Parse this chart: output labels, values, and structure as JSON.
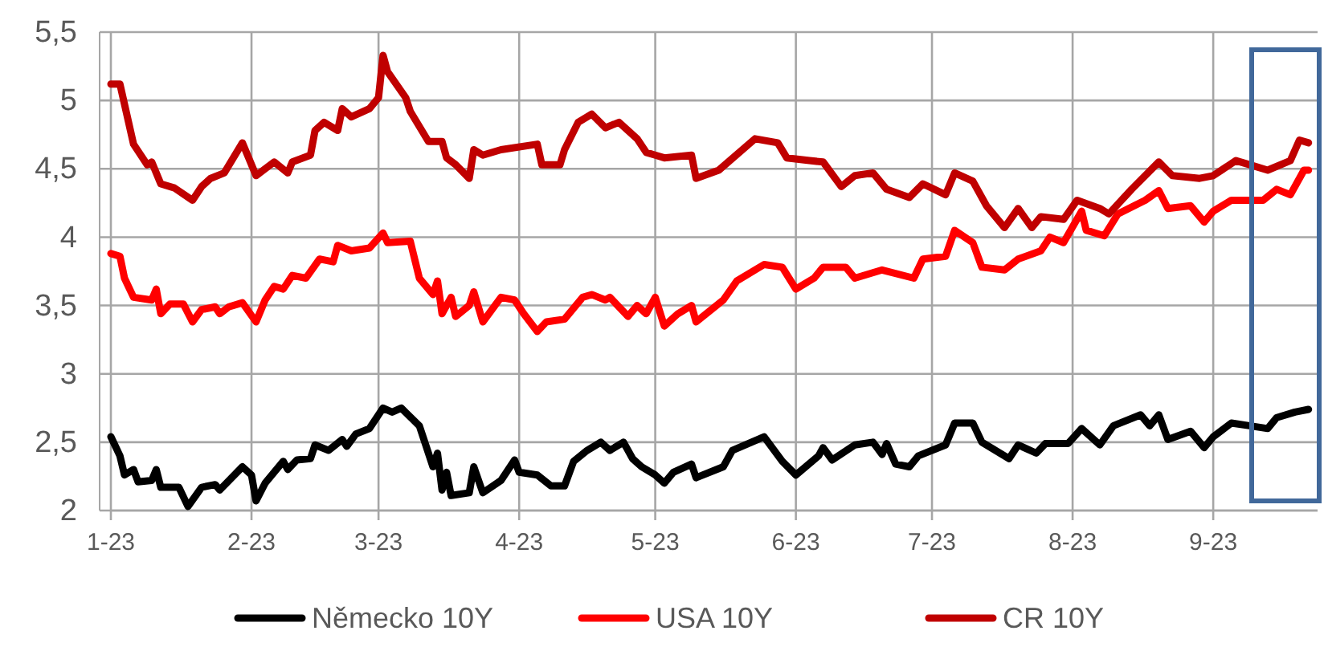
{
  "chart_data": {
    "type": "line",
    "xlim": [
      "2023-01-01",
      "2023-09-24"
    ],
    "xticks": [
      {
        "value": "2023-01-01",
        "label": "1-23"
      },
      {
        "value": "2023-02-01",
        "label": "2-23"
      },
      {
        "value": "2023-03-01",
        "label": "3-23"
      },
      {
        "value": "2023-04-01",
        "label": "4-23"
      },
      {
        "value": "2023-05-01",
        "label": "5-23"
      },
      {
        "value": "2023-06-01",
        "label": "6-23"
      },
      {
        "value": "2023-07-01",
        "label": "7-23"
      },
      {
        "value": "2023-08-01",
        "label": "8-23"
      },
      {
        "value": "2023-09-01",
        "label": "9-23"
      }
    ],
    "ylim": [
      2,
      5.5
    ],
    "yticks": [
      {
        "value": 2,
        "label": "2"
      },
      {
        "value": 2.5,
        "label": "2,5"
      },
      {
        "value": 3,
        "label": "3"
      },
      {
        "value": 3.5,
        "label": "3,5"
      },
      {
        "value": 4,
        "label": "4"
      },
      {
        "value": 4.5,
        "label": "4,5"
      },
      {
        "value": 5,
        "label": "5"
      },
      {
        "value": 5.5,
        "label": "5,5"
      }
    ],
    "grid": true,
    "legend": "bottom",
    "marker": "none",
    "line_style": "solid",
    "series": [
      {
        "name": "Německo 10Y",
        "color": "#000000",
        "x": [
          "2023-01-01",
          "2023-01-03",
          "2023-01-04",
          "2023-01-06",
          "2023-01-07",
          "2023-01-10",
          "2023-01-11",
          "2023-01-12",
          "2023-01-16",
          "2023-01-18",
          "2023-01-21",
          "2023-01-24",
          "2023-01-25",
          "2023-01-30",
          "2023-02-01",
          "2023-02-02",
          "2023-02-04",
          "2023-02-08",
          "2023-02-09",
          "2023-02-11",
          "2023-02-14",
          "2023-02-15",
          "2023-02-18",
          "2023-02-21",
          "2023-02-22",
          "2023-02-24",
          "2023-02-27",
          "2023-03-02",
          "2023-03-04",
          "2023-03-06",
          "2023-03-10",
          "2023-03-13",
          "2023-03-14",
          "2023-03-15",
          "2023-03-16",
          "2023-03-17",
          "2023-03-21",
          "2023-03-22",
          "2023-03-24",
          "2023-03-28",
          "2023-03-31",
          "2023-04-01",
          "2023-04-05",
          "2023-04-08",
          "2023-04-11",
          "2023-04-13",
          "2023-04-16",
          "2023-04-19",
          "2023-04-21",
          "2023-04-24",
          "2023-04-26",
          "2023-04-28",
          "2023-05-01",
          "2023-05-03",
          "2023-05-05",
          "2023-05-09",
          "2023-05-10",
          "2023-05-16",
          "2023-05-18",
          "2023-05-25",
          "2023-05-29",
          "2023-06-01",
          "2023-06-06",
          "2023-06-07",
          "2023-06-09",
          "2023-06-14",
          "2023-06-18",
          "2023-06-20",
          "2023-06-21",
          "2023-06-23",
          "2023-06-26",
          "2023-06-28",
          "2023-07-04",
          "2023-07-06",
          "2023-07-10",
          "2023-07-12",
          "2023-07-18",
          "2023-07-20",
          "2023-07-24",
          "2023-07-26",
          "2023-07-31",
          "2023-08-03",
          "2023-08-07",
          "2023-08-10",
          "2023-08-16",
          "2023-08-18",
          "2023-08-20",
          "2023-08-22",
          "2023-08-27",
          "2023-08-30",
          "2023-09-01",
          "2023-09-05",
          "2023-09-09",
          "2023-09-13",
          "2023-09-15",
          "2023-09-19",
          "2023-09-22"
        ],
        "values": [
          2.54,
          2.4,
          2.26,
          2.3,
          2.21,
          2.22,
          2.3,
          2.17,
          2.17,
          2.03,
          2.17,
          2.19,
          2.15,
          2.32,
          2.26,
          2.07,
          2.2,
          2.36,
          2.3,
          2.37,
          2.38,
          2.48,
          2.44,
          2.52,
          2.47,
          2.56,
          2.6,
          2.75,
          2.72,
          2.75,
          2.62,
          2.32,
          2.42,
          2.15,
          2.28,
          2.11,
          2.13,
          2.32,
          2.13,
          2.22,
          2.37,
          2.28,
          2.26,
          2.18,
          2.18,
          2.36,
          2.44,
          2.5,
          2.44,
          2.5,
          2.38,
          2.32,
          2.26,
          2.2,
          2.28,
          2.34,
          2.24,
          2.32,
          2.44,
          2.54,
          2.36,
          2.26,
          2.4,
          2.46,
          2.37,
          2.48,
          2.5,
          2.41,
          2.49,
          2.34,
          2.32,
          2.4,
          2.48,
          2.64,
          2.64,
          2.5,
          2.38,
          2.48,
          2.42,
          2.49,
          2.49,
          2.6,
          2.48,
          2.62,
          2.7,
          2.62,
          2.7,
          2.52,
          2.58,
          2.46,
          2.54,
          2.64,
          2.62,
          2.6,
          2.68,
          2.72,
          2.74
        ]
      },
      {
        "name": "USA 10Y",
        "color": "#ff0000",
        "x": [
          "2023-01-01",
          "2023-01-03",
          "2023-01-04",
          "2023-01-06",
          "2023-01-10",
          "2023-01-11",
          "2023-01-12",
          "2023-01-14",
          "2023-01-17",
          "2023-01-19",
          "2023-01-21",
          "2023-01-24",
          "2023-01-25",
          "2023-01-27",
          "2023-01-30",
          "2023-02-02",
          "2023-02-04",
          "2023-02-06",
          "2023-02-08",
          "2023-02-10",
          "2023-02-13",
          "2023-02-16",
          "2023-02-19",
          "2023-02-20",
          "2023-02-23",
          "2023-02-27",
          "2023-03-02",
          "2023-03-03",
          "2023-03-08",
          "2023-03-10",
          "2023-03-13",
          "2023-03-14",
          "2023-03-15",
          "2023-03-17",
          "2023-03-18",
          "2023-03-21",
          "2023-03-22",
          "2023-03-24",
          "2023-03-28",
          "2023-03-31",
          "2023-04-02",
          "2023-04-05",
          "2023-04-07",
          "2023-04-11",
          "2023-04-15",
          "2023-04-17",
          "2023-04-20",
          "2023-04-21",
          "2023-04-25",
          "2023-04-27",
          "2023-04-29",
          "2023-05-01",
          "2023-05-03",
          "2023-05-06",
          "2023-05-09",
          "2023-05-10",
          "2023-05-16",
          "2023-05-19",
          "2023-05-25",
          "2023-05-29",
          "2023-06-01",
          "2023-06-05",
          "2023-06-07",
          "2023-06-12",
          "2023-06-14",
          "2023-06-20",
          "2023-06-27",
          "2023-06-29",
          "2023-07-04",
          "2023-07-06",
          "2023-07-10",
          "2023-07-12",
          "2023-07-17",
          "2023-07-20",
          "2023-07-25",
          "2023-07-27",
          "2023-07-30",
          "2023-08-03",
          "2023-08-04",
          "2023-08-08",
          "2023-08-11",
          "2023-08-17",
          "2023-08-20",
          "2023-08-22",
          "2023-08-27",
          "2023-08-30",
          "2023-09-01",
          "2023-09-05",
          "2023-09-12",
          "2023-09-15",
          "2023-09-18",
          "2023-09-21",
          "2023-09-22"
        ],
        "values": [
          3.88,
          3.86,
          3.7,
          3.56,
          3.54,
          3.62,
          3.44,
          3.51,
          3.51,
          3.38,
          3.47,
          3.49,
          3.44,
          3.49,
          3.52,
          3.38,
          3.54,
          3.64,
          3.62,
          3.72,
          3.7,
          3.84,
          3.82,
          3.94,
          3.9,
          3.92,
          4.03,
          3.96,
          3.97,
          3.7,
          3.58,
          3.68,
          3.44,
          3.56,
          3.42,
          3.5,
          3.6,
          3.38,
          3.56,
          3.54,
          3.44,
          3.31,
          3.38,
          3.4,
          3.56,
          3.58,
          3.54,
          3.56,
          3.42,
          3.5,
          3.44,
          3.56,
          3.35,
          3.44,
          3.5,
          3.38,
          3.54,
          3.68,
          3.8,
          3.78,
          3.62,
          3.7,
          3.78,
          3.78,
          3.7,
          3.76,
          3.7,
          3.84,
          3.86,
          4.05,
          3.96,
          3.78,
          3.76,
          3.84,
          3.9,
          4.0,
          3.96,
          4.19,
          4.05,
          4.01,
          4.17,
          4.27,
          4.34,
          4.21,
          4.23,
          4.11,
          4.19,
          4.27,
          4.27,
          4.35,
          4.31,
          4.49,
          4.49
        ]
      },
      {
        "name": "CR 10Y",
        "color": "#c00000",
        "x": [
          "2023-01-01",
          "2023-01-03",
          "2023-01-06",
          "2023-01-09",
          "2023-01-10",
          "2023-01-12",
          "2023-01-15",
          "2023-01-19",
          "2023-01-21",
          "2023-01-23",
          "2023-01-26",
          "2023-01-28",
          "2023-01-30",
          "2023-02-02",
          "2023-02-06",
          "2023-02-09",
          "2023-02-10",
          "2023-02-14",
          "2023-02-15",
          "2023-02-17",
          "2023-02-20",
          "2023-02-21",
          "2023-02-23",
          "2023-02-27",
          "2023-03-01",
          "2023-03-02",
          "2023-03-03",
          "2023-03-07",
          "2023-03-08",
          "2023-03-12",
          "2023-03-15",
          "2023-03-16",
          "2023-03-18",
          "2023-03-21",
          "2023-03-22",
          "2023-03-24",
          "2023-03-28",
          "2023-04-05",
          "2023-04-06",
          "2023-04-10",
          "2023-04-11",
          "2023-04-14",
          "2023-04-17",
          "2023-04-20",
          "2023-04-23",
          "2023-04-27",
          "2023-04-29",
          "2023-05-01",
          "2023-05-03",
          "2023-05-09",
          "2023-05-10",
          "2023-05-15",
          "2023-05-23",
          "2023-05-28",
          "2023-05-30",
          "2023-06-04",
          "2023-06-07",
          "2023-06-11",
          "2023-06-14",
          "2023-06-18",
          "2023-06-21",
          "2023-06-26",
          "2023-06-29",
          "2023-07-04",
          "2023-07-06",
          "2023-07-10",
          "2023-07-13",
          "2023-07-17",
          "2023-07-20",
          "2023-07-23",
          "2023-07-25",
          "2023-07-30",
          "2023-08-02",
          "2023-08-07",
          "2023-08-09",
          "2023-08-14",
          "2023-08-20",
          "2023-08-23",
          "2023-08-29",
          "2023-09-01",
          "2023-09-06",
          "2023-09-09",
          "2023-09-13",
          "2023-09-18",
          "2023-09-20",
          "2023-09-22"
        ],
        "values": [
          5.12,
          5.12,
          4.68,
          4.53,
          4.55,
          4.39,
          4.36,
          4.27,
          4.37,
          4.43,
          4.47,
          4.58,
          4.69,
          4.45,
          4.55,
          4.47,
          4.55,
          4.6,
          4.78,
          4.84,
          4.78,
          4.94,
          4.88,
          4.94,
          5.02,
          5.33,
          5.21,
          5.02,
          4.92,
          4.7,
          4.7,
          4.58,
          4.53,
          4.43,
          4.64,
          4.6,
          4.64,
          4.68,
          4.53,
          4.53,
          4.64,
          4.84,
          4.9,
          4.8,
          4.84,
          4.72,
          4.62,
          4.6,
          4.58,
          4.6,
          4.43,
          4.49,
          4.72,
          4.69,
          4.58,
          4.56,
          4.55,
          4.37,
          4.45,
          4.47,
          4.35,
          4.29,
          4.39,
          4.31,
          4.47,
          4.41,
          4.23,
          4.07,
          4.21,
          4.07,
          4.15,
          4.13,
          4.27,
          4.21,
          4.17,
          4.35,
          4.55,
          4.45,
          4.43,
          4.45,
          4.56,
          4.53,
          4.49,
          4.56,
          4.71,
          4.69
        ]
      }
    ]
  }
}
